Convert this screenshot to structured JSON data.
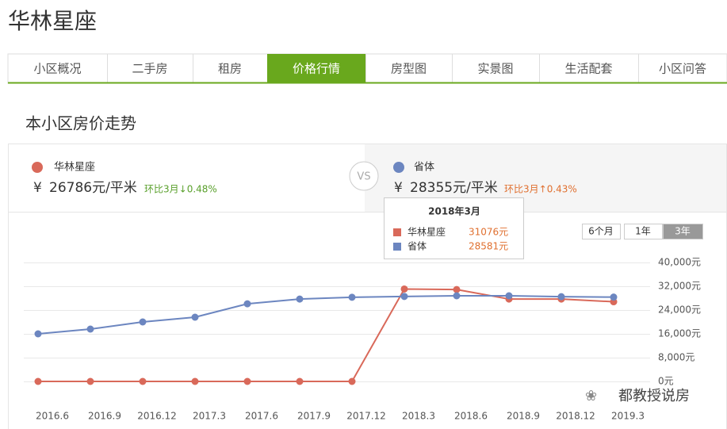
{
  "header": {
    "title": "华林星座"
  },
  "tabs": [
    "小区概况",
    "二手房",
    "租房",
    "价格行情",
    "房型图",
    "实景图",
    "生活配套",
    "小区问答"
  ],
  "section_title": "本小区房价走势",
  "compare": {
    "left": {
      "name": "华林星座",
      "currency": "¥",
      "price": "26786元/平米",
      "change": "环比3月↓0.48%"
    },
    "vs": "VS",
    "right": {
      "name": "省体",
      "currency": "¥",
      "price": "28355元/平米",
      "change": "环比3月↑0.43%"
    }
  },
  "range_buttons": [
    "6个月",
    "1年",
    "3年"
  ],
  "watermark": "都教授说房",
  "chart_data": {
    "type": "line",
    "categories": [
      "2016.6",
      "2016.9",
      "2016.12",
      "2017.3",
      "2017.6",
      "2017.9",
      "2017.12",
      "2018.3",
      "2018.6",
      "2018.9",
      "2018.12",
      "2019.3"
    ],
    "series": [
      {
        "name": "华林星座",
        "color": "#d9695a",
        "values": [
          0,
          0,
          0,
          0,
          0,
          0,
          0,
          31076,
          30900,
          27700,
          27700,
          26786
        ]
      },
      {
        "name": "省体",
        "color": "#6c86c0",
        "values": [
          16000,
          17600,
          20000,
          21600,
          26100,
          27700,
          28300,
          28581,
          28800,
          28800,
          28500,
          28355
        ]
      }
    ],
    "ylim": [
      0,
      40000
    ],
    "yticks": [
      {
        "value": 0,
        "label": "0元"
      },
      {
        "value": 8000,
        "label": "8,000元"
      },
      {
        "value": 16000,
        "label": "16,000元"
      },
      {
        "value": 24000,
        "label": "24,000元"
      },
      {
        "value": 32000,
        "label": "32,000元"
      },
      {
        "value": 40000,
        "label": "40,000元"
      }
    ],
    "grid": true,
    "tooltip": {
      "title": "2018年3月",
      "items": [
        {
          "name": "华林星座",
          "value": "31076元"
        },
        {
          "name": "省体",
          "value": "28581元"
        }
      ]
    }
  }
}
